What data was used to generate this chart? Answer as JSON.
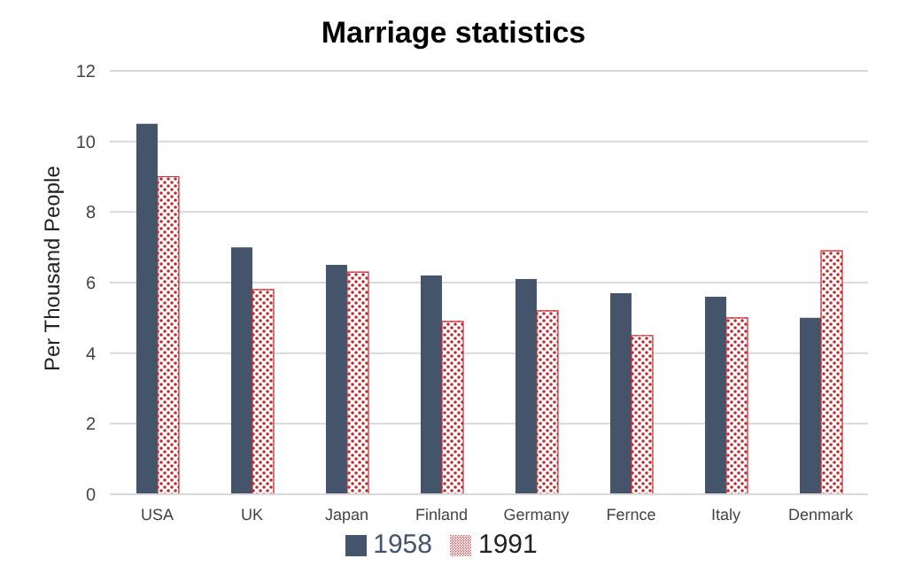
{
  "chart_data": {
    "type": "bar",
    "title": "Marriage statistics",
    "ylabel": "Per Thousand People",
    "categories": [
      "USA",
      "UK",
      "Japan",
      "Finland",
      "Germany",
      "Fernce",
      "Italy",
      "Denmark"
    ],
    "series": [
      {
        "name": "1958",
        "color": "#44546a",
        "values": [
          10.5,
          7,
          6.5,
          6.2,
          6.1,
          5.7,
          5.6,
          5.0
        ]
      },
      {
        "name": "1991",
        "color": "#c0282d",
        "values": [
          9,
          5.8,
          6.3,
          4.9,
          5.2,
          4.5,
          5.0,
          6.9
        ]
      }
    ],
    "ylim": [
      0,
      12
    ],
    "yticks": [
      0,
      2,
      4,
      6,
      8,
      10,
      12
    ],
    "grid": "y",
    "legend": "bottom"
  }
}
